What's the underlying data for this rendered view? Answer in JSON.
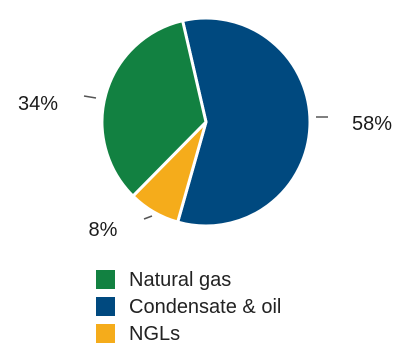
{
  "chart_data": {
    "type": "pie",
    "slices": [
      {
        "label": "Condensate & oil",
        "value": 58,
        "display": "58%",
        "color": "#00497f"
      },
      {
        "label": "NGLs",
        "value": 8,
        "display": "8%",
        "color": "#f5ac1b"
      },
      {
        "label": "Natural gas",
        "value": 34,
        "display": "34%",
        "color": "#128141"
      }
    ],
    "legend": [
      {
        "label": "Natural gas",
        "color": "#128141"
      },
      {
        "label": "Condensate & oil",
        "color": "#00497f"
      },
      {
        "label": "NGLs",
        "color": "#f5ac1b"
      }
    ],
    "legend_position": "bottom"
  }
}
